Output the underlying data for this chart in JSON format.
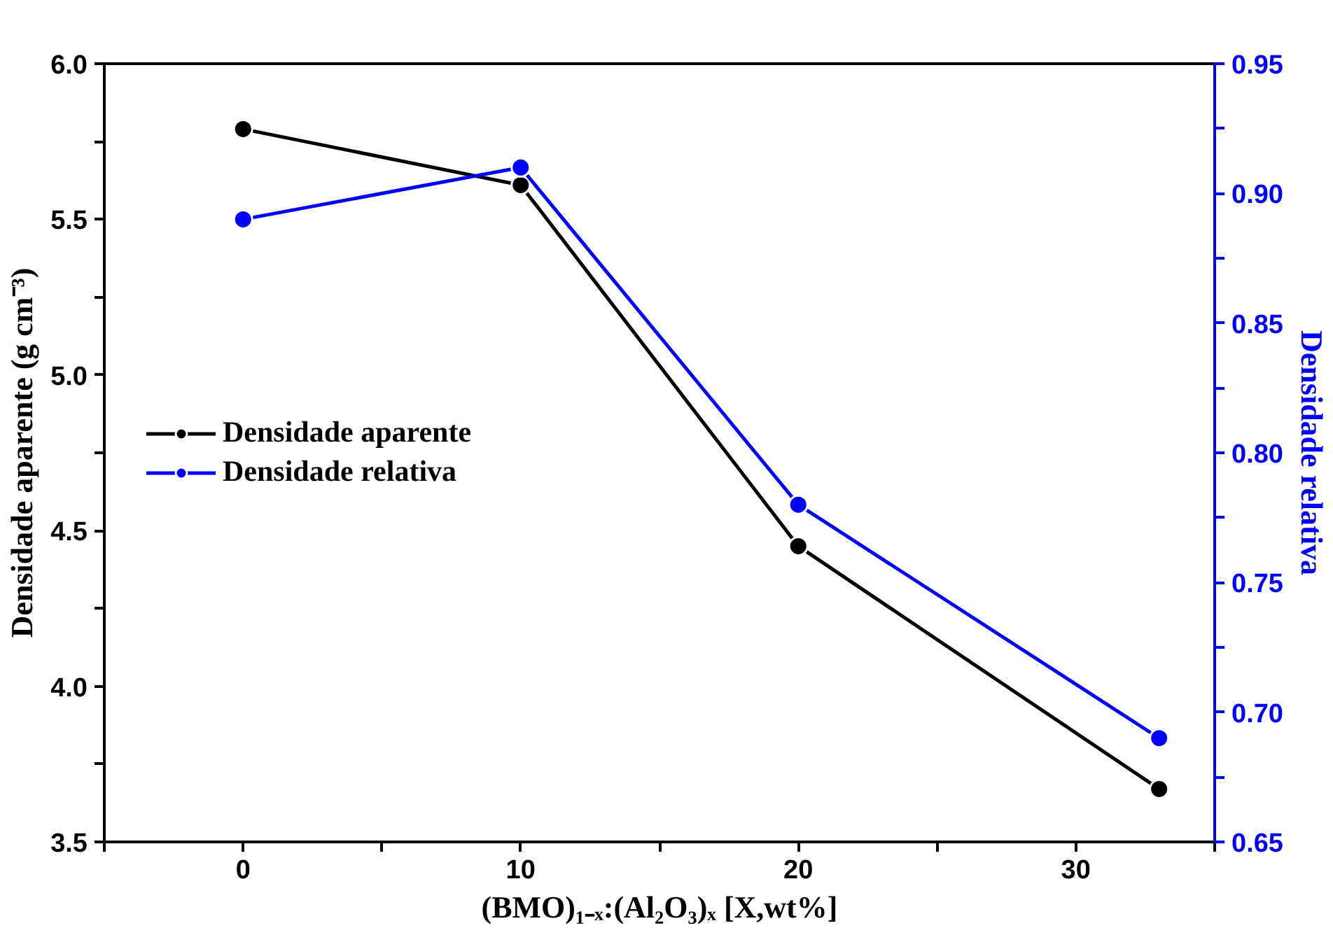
{
  "chart_data": {
    "type": "line",
    "xlabel": "(BMO)₁₋ₓ:(Al₂O₃)ₓ [X,wt%]",
    "ylabel": "Densidade aparente (g cm⁻³)",
    "y2label": "Densidade relativa",
    "x": [
      0,
      10,
      20,
      33
    ],
    "series": [
      {
        "name": "Densidade aparente",
        "color": "#000000",
        "values": [
          5.79,
          5.61,
          4.45,
          3.67
        ]
      },
      {
        "name": "Densidade relativa",
        "color": "#0000ff",
        "values": [
          0.89,
          0.91,
          0.78,
          0.69
        ],
        "axis": "y2"
      }
    ],
    "xlim": [
      -5,
      35
    ],
    "xticks": [
      {
        "value": -5,
        "label": null
      },
      0,
      {
        "value": 5,
        "label": null
      },
      10,
      {
        "value": 15,
        "label": null
      },
      20,
      {
        "value": 25,
        "label": null
      },
      30,
      {
        "value": 35,
        "label": null
      }
    ],
    "ylim": [
      3.5,
      6.0
    ],
    "yticks": [
      {
        "value": 3.5,
        "label": "3.5"
      },
      {
        "value": 3.75,
        "label": null
      },
      {
        "value": 4.0,
        "label": "4.0"
      },
      {
        "value": 4.25,
        "label": null
      },
      {
        "value": 4.5,
        "label": "4.5"
      },
      {
        "value": 4.75,
        "label": null
      },
      {
        "value": 5.0,
        "label": "5.0"
      },
      {
        "value": 5.25,
        "label": null
      },
      {
        "value": 5.5,
        "label": "5.5"
      },
      {
        "value": 5.75,
        "label": null
      },
      {
        "value": 6.0,
        "label": "6.0"
      }
    ],
    "y2lim": [
      0.65,
      0.95
    ],
    "y2ticks": [
      {
        "value": 0.65,
        "label": "0.65"
      },
      {
        "value": 0.675,
        "label": null
      },
      {
        "value": 0.7,
        "label": "0.70"
      },
      {
        "value": 0.725,
        "label": null
      },
      {
        "value": 0.75,
        "label": "0.75"
      },
      {
        "value": 0.775,
        "label": null
      },
      {
        "value": 0.8,
        "label": "0.80"
      },
      {
        "value": 0.825,
        "label": null
      },
      {
        "value": 0.85,
        "label": "0.85"
      },
      {
        "value": 0.875,
        "label": null
      },
      {
        "value": 0.9,
        "label": "0.90"
      },
      {
        "value": 0.925,
        "label": null
      },
      {
        "value": 0.95,
        "label": "0.95"
      }
    ],
    "marker": "circle",
    "line_style": "solid",
    "grid": false,
    "legend": "left"
  }
}
